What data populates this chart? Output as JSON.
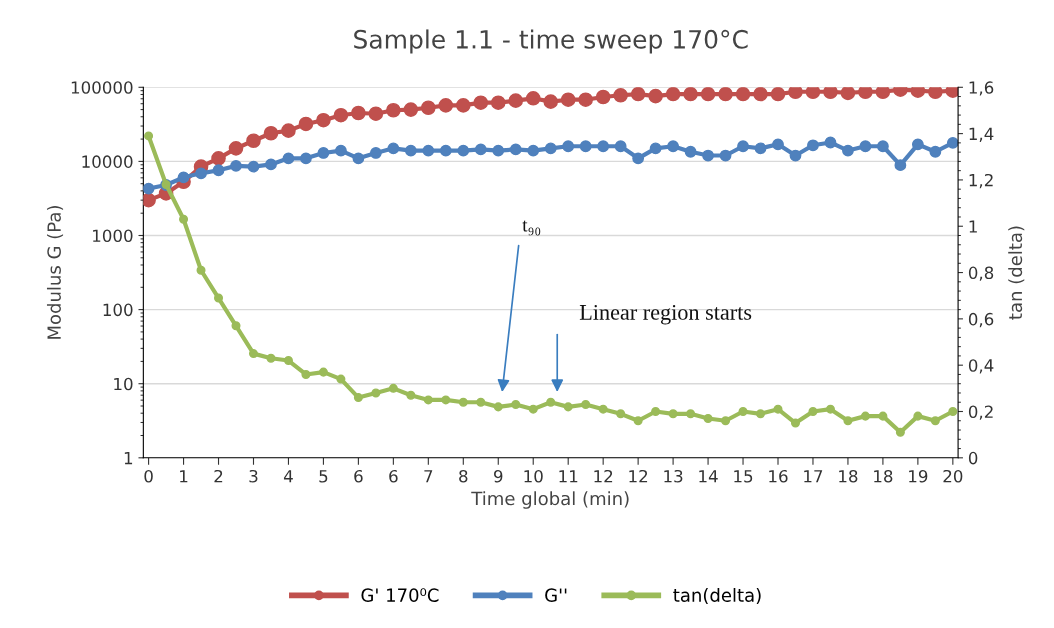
{
  "chart_data": {
    "type": "line",
    "title": "Sample 1.1 - time sweep 170°C",
    "xlabel": "Time global (min)",
    "ylabel": "Modulus G (Pa)",
    "y2label": "tan (delta)",
    "categories": [
      "0",
      null,
      "1",
      null,
      "2",
      null,
      "3",
      null,
      "4",
      null,
      "5",
      null,
      "6",
      null,
      "6",
      null,
      "7",
      null,
      "8",
      null,
      "9",
      null,
      "10",
      null,
      "11",
      null,
      "12",
      null,
      "12",
      null,
      "13",
      null,
      "14",
      null,
      "15",
      null,
      "16",
      null,
      "17",
      null,
      "18",
      null,
      "18",
      null,
      "19",
      null,
      "20"
    ],
    "log": "y",
    "ylim": [
      1,
      100000
    ],
    "yticks": [
      1,
      10,
      100,
      1000,
      10000,
      100000
    ],
    "y2lim": [
      0,
      1.6
    ],
    "y2ticks": [
      0,
      {
        "value": 0.2,
        "label": "0,2"
      },
      {
        "value": 0.4,
        "label": "0,4"
      },
      {
        "value": 0.6,
        "label": "0,6"
      },
      {
        "value": 0.8,
        "label": "0,8"
      },
      1,
      {
        "value": 1.2,
        "label": "1,2"
      },
      {
        "value": 1.4,
        "label": "1,4"
      },
      {
        "value": 1.6,
        "label": "1,6"
      }
    ],
    "grid": "y",
    "legend": "bottom",
    "marker": "circle",
    "line_style": "solid",
    "series": [
      {
        "name": "G' 170⁰C",
        "color": "#c0504d",
        "values": [
          3000,
          3700,
          5300,
          8500,
          11000,
          15000,
          19000,
          24000,
          26000,
          32000,
          36000,
          42000,
          45000,
          44000,
          49000,
          50000,
          53000,
          57000,
          57000,
          62000,
          62000,
          66000,
          71000,
          64000,
          68000,
          68000,
          74000,
          78000,
          81000,
          76000,
          81000,
          81000,
          81000,
          81000,
          81000,
          81000,
          81000,
          87000,
          87000,
          87000,
          84000,
          87000,
          87000,
          93000,
          90000,
          87000,
          90000
        ]
      },
      {
        "name": "G''",
        "color": "#4f81bd",
        "values": [
          4300,
          4800,
          6100,
          6900,
          7600,
          8700,
          8500,
          9100,
          11000,
          11000,
          13000,
          14000,
          11000,
          13000,
          15000,
          14000,
          14000,
          14000,
          14000,
          14500,
          14000,
          14500,
          14000,
          15000,
          16000,
          16000,
          16000,
          16000,
          11000,
          15000,
          16000,
          13500,
          12000,
          12000,
          16000,
          15000,
          17000,
          12000,
          16500,
          18000,
          14000,
          16000,
          16000,
          8900,
          17000,
          13500,
          17800
        ]
      },
      {
        "name": "tan(delta)",
        "color": "#9bbb59",
        "axis": "y2",
        "values": [
          1.39,
          1.18,
          1.03,
          0.81,
          0.69,
          0.57,
          0.45,
          0.43,
          0.42,
          0.36,
          0.37,
          0.34,
          0.26,
          0.28,
          0.3,
          0.27,
          0.25,
          0.25,
          0.24,
          0.24,
          0.22,
          0.23,
          0.21,
          0.24,
          0.22,
          0.23,
          0.21,
          0.19,
          0.16,
          0.2,
          0.19,
          0.19,
          0.17,
          0.16,
          0.2,
          0.19,
          0.21,
          0.15,
          0.2,
          0.21,
          0.16,
          0.18,
          0.18,
          0.11,
          0.18,
          0.16,
          0.2
        ]
      }
    ],
    "annotations": [
      "t₉₀",
      "Linear region starts"
    ]
  }
}
